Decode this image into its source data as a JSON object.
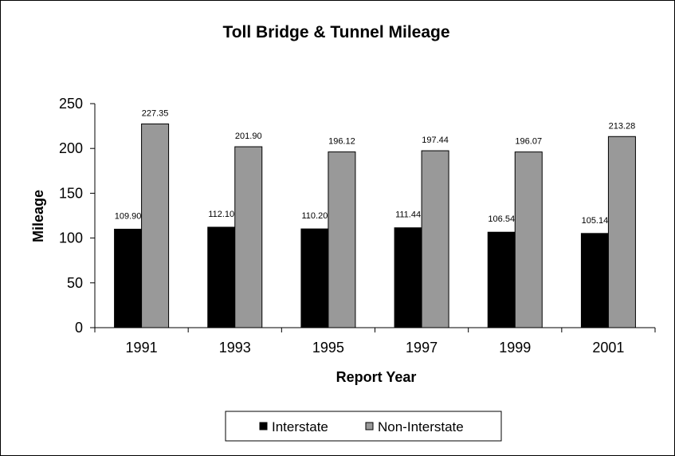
{
  "chart_data": {
    "type": "bar",
    "title": "Toll Bridge & Tunnel Mileage",
    "xlabel": "Report Year",
    "ylabel": "Mileage",
    "ylim": [
      0,
      250
    ],
    "yticks": [
      "0",
      "50",
      "100",
      "150",
      "200",
      "250"
    ],
    "categories": [
      "1991",
      "1993",
      "1995",
      "1997",
      "1999",
      "2001"
    ],
    "series": [
      {
        "name": "Interstate",
        "color": "#000000",
        "values": [
          109.9,
          112.1,
          110.2,
          111.44,
          106.54,
          105.14
        ],
        "labels": [
          "109.90",
          "112.10",
          "110.20",
          "111.44",
          "106.54",
          "105.14"
        ]
      },
      {
        "name": "Non-Interstate",
        "color": "#999999",
        "values": [
          227.35,
          201.9,
          196.12,
          197.44,
          196.07,
          213.28
        ],
        "labels": [
          "227.35",
          "201.90",
          "196.12",
          "197.44",
          "196.07",
          "213.28"
        ]
      }
    ],
    "legend": {
      "position": "bottom",
      "items": [
        "Interstate",
        "Non-Interstate"
      ]
    }
  }
}
